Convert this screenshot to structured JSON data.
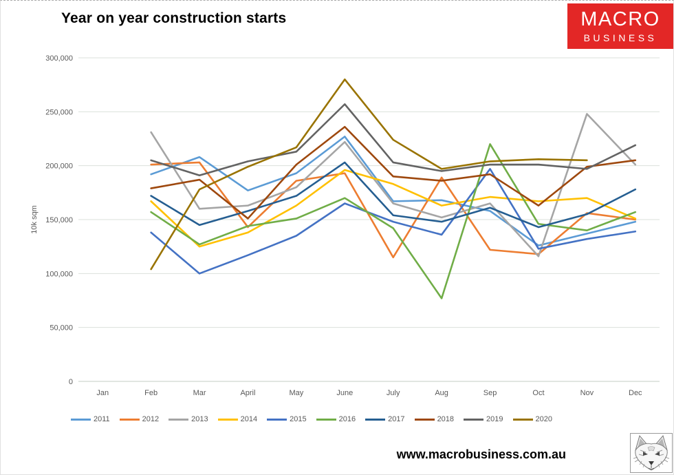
{
  "title": "Year on year construction starts",
  "logo": {
    "line1": "MACRO",
    "line2": "BUSINESS",
    "bg_color": "#E32726"
  },
  "footer": {
    "url": "www.macrobusiness.com.au"
  },
  "chart_data": {
    "type": "line",
    "title": "Year on year construction starts",
    "xlabel": "",
    "ylabel": "10k sqm",
    "ylim": [
      0,
      300000
    ],
    "ytick_step": 50000,
    "yticks": [
      "0",
      "50,000",
      "100,000",
      "150,000",
      "200,000",
      "250,000",
      "300,000"
    ],
    "categories": [
      "Jan",
      "Feb",
      "Mar",
      "April",
      "May",
      "June",
      "July",
      "Aug",
      "Sep",
      "Oct",
      "Nov",
      "Dec"
    ],
    "grid": true,
    "legend_position": "bottom",
    "series": [
      {
        "name": "2011",
        "color": "#5B9BD5",
        "values": [
          null,
          192000,
          208000,
          177000,
          193000,
          227000,
          167000,
          168000,
          158000,
          126000,
          137000,
          148000
        ]
      },
      {
        "name": "2012",
        "color": "#ED7D31",
        "values": [
          null,
          201000,
          203000,
          143000,
          186000,
          193000,
          115000,
          189000,
          122000,
          118000,
          156000,
          150000
        ]
      },
      {
        "name": "2013",
        "color": "#A5A5A5",
        "values": [
          null,
          231000,
          160000,
          163000,
          180000,
          222000,
          165000,
          152000,
          165000,
          116000,
          248000,
          201000
        ]
      },
      {
        "name": "2014",
        "color": "#FFC000",
        "values": [
          null,
          167000,
          125000,
          138000,
          163000,
          196000,
          183000,
          163000,
          171000,
          167000,
          170000,
          151000
        ]
      },
      {
        "name": "2015",
        "color": "#4472C4",
        "values": [
          null,
          138000,
          100000,
          117000,
          135000,
          165000,
          148000,
          136000,
          197000,
          123000,
          132000,
          139000
        ]
      },
      {
        "name": "2016",
        "color": "#70AD47",
        "values": [
          null,
          157000,
          127000,
          144000,
          151000,
          170000,
          142000,
          77000,
          220000,
          146000,
          140000,
          157000
        ]
      },
      {
        "name": "2017",
        "color": "#255E91",
        "values": [
          null,
          172000,
          145000,
          158000,
          172000,
          203000,
          154000,
          148000,
          161000,
          143000,
          155000,
          178000
        ]
      },
      {
        "name": "2018",
        "color": "#9E480E",
        "values": [
          null,
          179000,
          187000,
          151000,
          201000,
          236000,
          190000,
          186000,
          192000,
          163000,
          199000,
          205000
        ]
      },
      {
        "name": "2019",
        "color": "#636363",
        "values": [
          null,
          205000,
          191000,
          204000,
          213000,
          257000,
          203000,
          195000,
          201000,
          201000,
          197000,
          219000
        ]
      },
      {
        "name": "2020",
        "color": "#997300",
        "values": [
          null,
          104000,
          178000,
          199000,
          217000,
          280000,
          224000,
          197000,
          204000,
          206000,
          205000,
          null
        ]
      }
    ]
  }
}
